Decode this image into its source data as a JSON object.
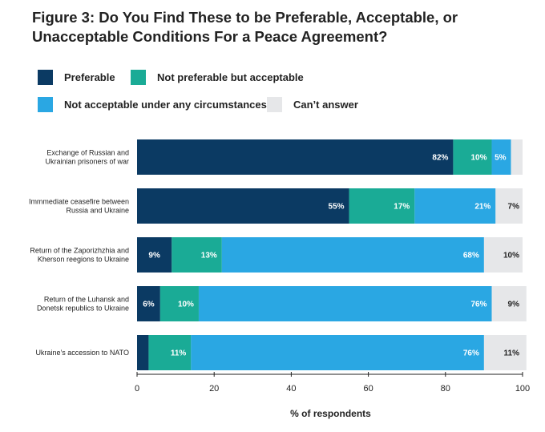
{
  "chart_data": {
    "type": "bar",
    "orientation": "horizontal",
    "stacked": true,
    "title": "Figure 3: Do You Find These to be Preferable, Acceptable, or Unacceptable Conditions For a Peace Agreement?",
    "xlabel": "% of respondents",
    "ylabel": "",
    "xlim": [
      0,
      100
    ],
    "xticks": [
      "0",
      "20",
      "40",
      "60",
      "80",
      "100"
    ],
    "legend_position": "top",
    "categories": [
      [
        "Exchange of Russian and",
        "Ukrainian prisoners of war"
      ],
      [
        "Immmediate ceasefire between",
        "Russia and Ukraine"
      ],
      [
        "Return of the Zaporizhzhia and",
        "Kherson reegions to Ukraine"
      ],
      [
        "Return of the Luhansk and",
        "Donetsk republics to Ukraine"
      ],
      [
        "Ukraine’s accession to NATO"
      ]
    ],
    "series": [
      {
        "name": "Preferable",
        "color": "#0b3a63",
        "text_color": "#ffffff",
        "values": [
          82,
          55,
          9,
          6,
          3
        ],
        "labels": [
          "82%",
          "55%",
          "9%",
          "6%",
          ""
        ]
      },
      {
        "name": "Not preferable but acceptable",
        "color": "#1aab96",
        "text_color": "#ffffff",
        "values": [
          10,
          17,
          13,
          10,
          11
        ],
        "labels": [
          "10%",
          "17%",
          "13%",
          "10%",
          "11%"
        ]
      },
      {
        "name": "Not acceptable under any circumstances",
        "color": "#2aa7e3",
        "text_color": "#ffffff",
        "values": [
          5,
          21,
          68,
          76,
          76
        ],
        "labels": [
          "5%",
          "21%",
          "68%",
          "76%",
          "76%"
        ]
      },
      {
        "name": "Can’t answer",
        "color": "#e6e7e9",
        "text_color": "#222222",
        "values": [
          3,
          7,
          10,
          9,
          11
        ],
        "labels": [
          "",
          "7%",
          "10%",
          "9%",
          "11%"
        ]
      }
    ]
  }
}
